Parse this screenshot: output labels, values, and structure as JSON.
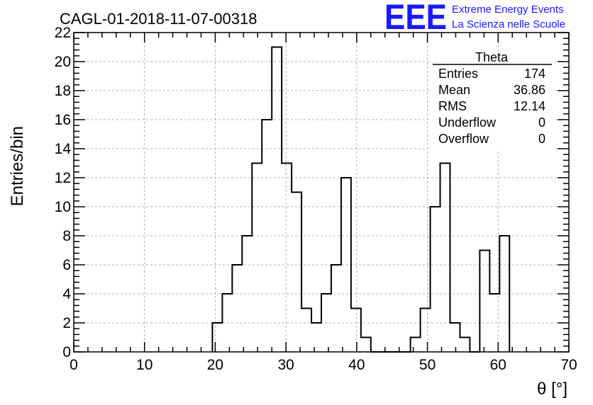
{
  "header": {
    "run_title": "CAGL-01-2018-11-07-00318",
    "brand_logo": "EEE",
    "brand_line1": "Extreme Energy Events",
    "brand_line2": "La Scienza nelle Scuole",
    "brand_color": "#1a1aff"
  },
  "stats_box": {
    "title": "Theta",
    "rows": [
      {
        "label": "Entries",
        "value": "174"
      },
      {
        "label": "Mean",
        "value": "36.86"
      },
      {
        "label": "RMS",
        "value": "12.14"
      },
      {
        "label": "Underflow",
        "value": "0"
      },
      {
        "label": "Overflow",
        "value": "0"
      }
    ]
  },
  "chart_data": {
    "type": "histogram",
    "title": "CAGL-01-2018-11-07-00318",
    "xlabel": "θ [°]",
    "ylabel": "Entries/bin",
    "xlim": [
      0,
      70
    ],
    "ylim": [
      0,
      22
    ],
    "bin_width": 1.4,
    "bins": [
      {
        "x": 19.6,
        "y": 2
      },
      {
        "x": 21.0,
        "y": 4
      },
      {
        "x": 22.4,
        "y": 6
      },
      {
        "x": 23.8,
        "y": 8
      },
      {
        "x": 25.2,
        "y": 13
      },
      {
        "x": 26.6,
        "y": 16
      },
      {
        "x": 28.0,
        "y": 21
      },
      {
        "x": 29.4,
        "y": 13
      },
      {
        "x": 30.8,
        "y": 11
      },
      {
        "x": 32.2,
        "y": 3
      },
      {
        "x": 33.6,
        "y": 2
      },
      {
        "x": 35.0,
        "y": 4
      },
      {
        "x": 36.4,
        "y": 6
      },
      {
        "x": 37.8,
        "y": 12
      },
      {
        "x": 39.2,
        "y": 3
      },
      {
        "x": 40.6,
        "y": 1
      },
      {
        "x": 42.0,
        "y": 0
      },
      {
        "x": 43.4,
        "y": 0
      },
      {
        "x": 44.8,
        "y": 0
      },
      {
        "x": 46.2,
        "y": 0
      },
      {
        "x": 47.6,
        "y": 1
      },
      {
        "x": 49.0,
        "y": 3
      },
      {
        "x": 50.4,
        "y": 10
      },
      {
        "x": 51.8,
        "y": 13
      },
      {
        "x": 53.2,
        "y": 2
      },
      {
        "x": 54.6,
        "y": 1
      },
      {
        "x": 56.0,
        "y": 0
      },
      {
        "x": 57.4,
        "y": 7
      },
      {
        "x": 58.8,
        "y": 4
      },
      {
        "x": 60.2,
        "y": 8
      }
    ],
    "x_ticks": [
      0,
      10,
      20,
      30,
      40,
      50,
      60,
      70
    ],
    "y_ticks": [
      0,
      2,
      4,
      6,
      8,
      10,
      12,
      14,
      16,
      18,
      20,
      22
    ],
    "grid": true,
    "line_color": "#000000",
    "grid_color": "#b0b0b0"
  }
}
